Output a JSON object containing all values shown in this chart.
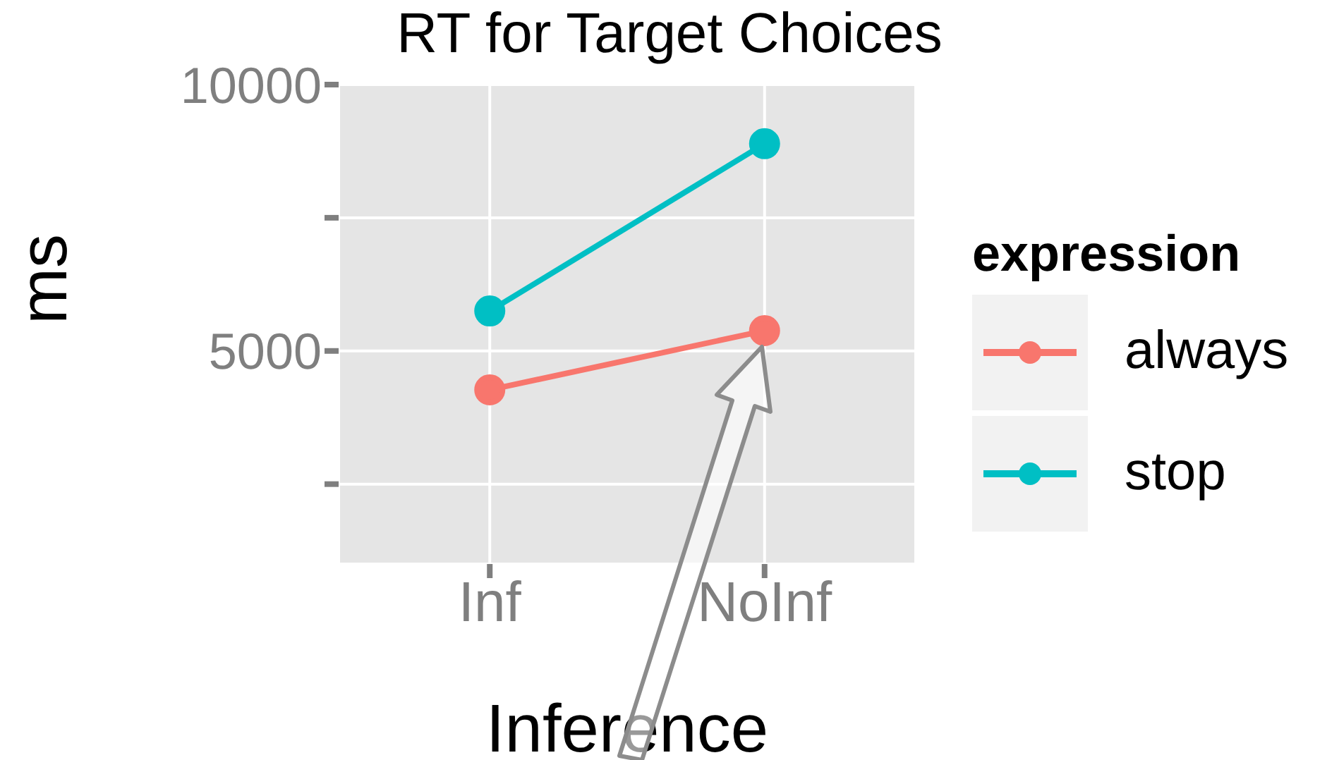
{
  "chart_data": {
    "type": "line",
    "title": "RT for Target Choices",
    "xlabel": "Inference",
    "ylabel": "ms",
    "legend_title": "expression",
    "categories": [
      "Inf",
      "NoInf"
    ],
    "series": [
      {
        "name": "always",
        "color": "#f8766d",
        "values": [
          4270,
          5380
        ]
      },
      {
        "name": "stop",
        "color": "#00bfc4",
        "values": [
          5750,
          8890
        ]
      }
    ],
    "ylim": [
      1000,
      10000
    ],
    "yticks": [
      {
        "value": 2500,
        "label": null
      },
      5000,
      {
        "value": 7500,
        "label": null
      },
      10000
    ],
    "grid": true,
    "legend": "right",
    "marker": "circle",
    "line_style": "solid"
  }
}
